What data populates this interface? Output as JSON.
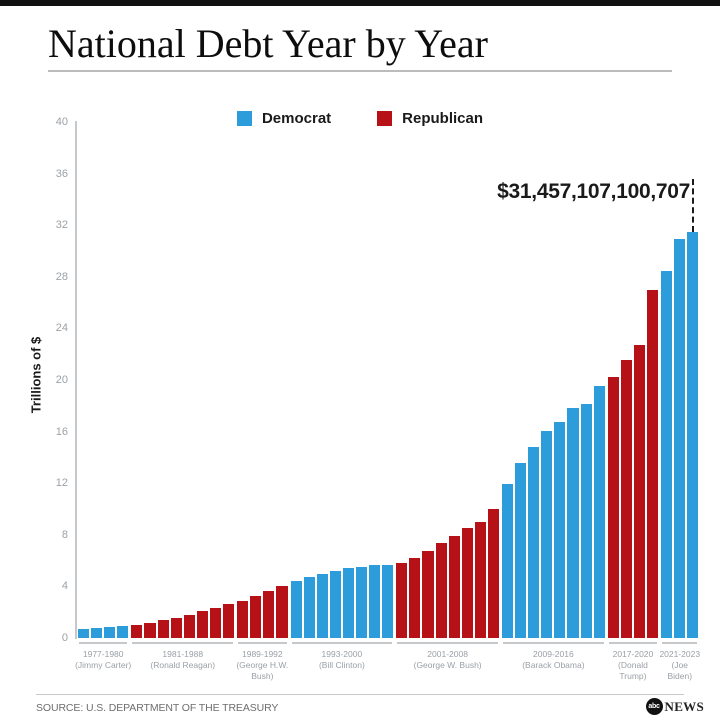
{
  "header": {
    "title": "National Debt Year by Year"
  },
  "chart_data": {
    "type": "bar",
    "title": "National Debt Year by Year",
    "ylabel": "Trillions of $",
    "unit": "trillions of US dollars",
    "ylim": [
      0,
      40
    ],
    "yticks": [
      0,
      4,
      8,
      12,
      16,
      20,
      24,
      28,
      32,
      36,
      40
    ],
    "grid": false,
    "legend_position": "top-center",
    "party_colors": {
      "D": "#2D9CDA",
      "R": "#B51117"
    },
    "legend": [
      {
        "party": "D",
        "label": "Democrat"
      },
      {
        "party": "R",
        "label": "Republican"
      }
    ],
    "peak_label": "$31,457,107,100,707",
    "groups": [
      {
        "period": "1977-1980",
        "president": "(Jimmy Carter)",
        "party": "D",
        "years": [
          1977,
          1978,
          1979,
          1980
        ],
        "values": [
          0.7,
          0.77,
          0.83,
          0.91
        ]
      },
      {
        "period": "1981-1988",
        "president": "(Ronald Reagan)",
        "party": "R",
        "years": [
          1981,
          1982,
          1983,
          1984,
          1985,
          1986,
          1987,
          1988
        ],
        "values": [
          1.0,
          1.14,
          1.38,
          1.57,
          1.82,
          2.13,
          2.35,
          2.6
        ]
      },
      {
        "period": "1989-1992",
        "president": "(George H.W.\nBush)",
        "party": "R",
        "years": [
          1989,
          1990,
          1991,
          1992
        ],
        "values": [
          2.86,
          3.23,
          3.67,
          4.06
        ]
      },
      {
        "period": "1993-2000",
        "president": "(Bill Clinton)",
        "party": "D",
        "years": [
          1993,
          1994,
          1995,
          1996,
          1997,
          1998,
          1999,
          2000
        ],
        "values": [
          4.41,
          4.69,
          4.97,
          5.22,
          5.41,
          5.53,
          5.66,
          5.67
        ]
      },
      {
        "period": "2001-2008",
        "president": "(George W. Bush)",
        "party": "R",
        "years": [
          2001,
          2002,
          2003,
          2004,
          2005,
          2006,
          2007,
          2008
        ],
        "values": [
          5.81,
          6.23,
          6.78,
          7.38,
          7.93,
          8.51,
          9.01,
          10.02
        ]
      },
      {
        "period": "2009-2016",
        "president": "(Barack Obama)",
        "party": "D",
        "years": [
          2009,
          2010,
          2011,
          2012,
          2013,
          2014,
          2015,
          2016
        ],
        "values": [
          11.91,
          13.56,
          14.79,
          16.07,
          16.74,
          17.82,
          18.15,
          19.57
        ]
      },
      {
        "period": "2017-2020",
        "president": "(Donald\nTrump)",
        "party": "R",
        "years": [
          2017,
          2018,
          2019,
          2020
        ],
        "values": [
          20.24,
          21.52,
          22.72,
          26.95
        ]
      },
      {
        "period": "2021-2023",
        "president": "(Joe\nBiden)",
        "party": "D",
        "years": [
          2021,
          2022,
          2023
        ],
        "values": [
          28.43,
          30.93,
          31.46
        ]
      }
    ]
  },
  "footer": {
    "source": "SOURCE: U.S. DEPARTMENT OF THE TREASURY",
    "logo_abc": "abc",
    "logo_news": "NEWS"
  }
}
